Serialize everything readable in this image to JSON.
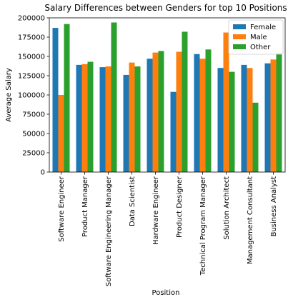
{
  "chart_data": {
    "type": "bar",
    "title": "Salary Differences between Genders for top 10 Positions",
    "xlabel": "Position",
    "ylabel": "Average Salary",
    "ylim": [
      0,
      200000
    ],
    "yticks": [
      0,
      25000,
      50000,
      75000,
      100000,
      125000,
      150000,
      175000,
      200000
    ],
    "grid": false,
    "legend_position": "top-right",
    "categories": [
      "Software Engineer",
      "Product Manager",
      "Software Engineering Manager",
      "Data Scientist",
      "Hardware Engineer",
      "Product Designer",
      "Technical Program Manager",
      "Solution Architect",
      "Management Consultant",
      "Business Analyst"
    ],
    "series": [
      {
        "name": "Female",
        "color": "#1f77b4",
        "values": [
          187000,
          139000,
          136000,
          126000,
          147000,
          104000,
          153000,
          135000,
          139000,
          141000
        ]
      },
      {
        "name": "Male",
        "color": "#ff7f0e",
        "values": [
          100000,
          140000,
          137000,
          142000,
          155000,
          156000,
          147000,
          181000,
          135000,
          146000
        ]
      },
      {
        "name": "Other",
        "color": "#2ca02c",
        "values": [
          192000,
          143000,
          194000,
          137000,
          157000,
          182000,
          159000,
          130000,
          90000,
          154000
        ]
      }
    ]
  }
}
